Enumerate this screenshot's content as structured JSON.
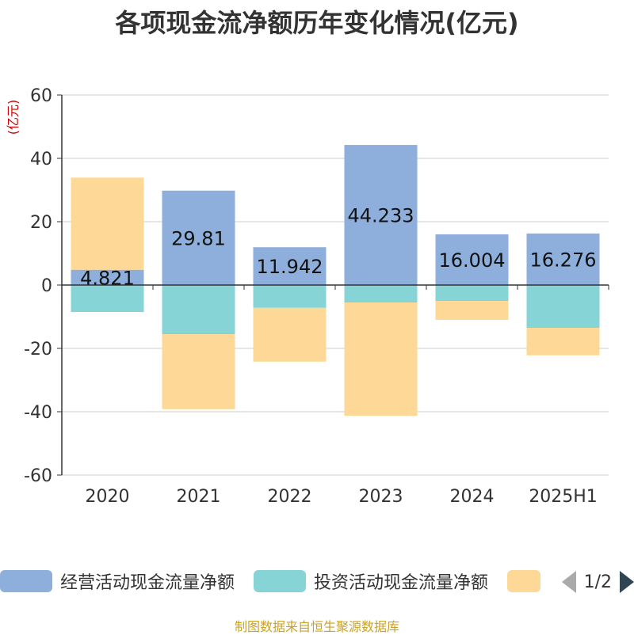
{
  "chart_data": {
    "type": "bar",
    "stacked": true,
    "title": "各项现金流净额历年变化情况(亿元)",
    "ylabel": "(亿元)",
    "ylim": [
      -60,
      60
    ],
    "yticks": [
      60,
      40,
      20,
      0,
      -20,
      -40,
      -60
    ],
    "categories": [
      "2020",
      "2021",
      "2022",
      "2023",
      "2024",
      "2025H1"
    ],
    "series": [
      {
        "name": "经营活动现金流量净额",
        "color": "#8eaedb",
        "values": [
          4.821,
          29.81,
          11.942,
          44.233,
          16.004,
          16.276
        ],
        "labels": [
          "4.821",
          "29.81",
          "11.942",
          "44.233",
          "16.004",
          "16.276"
        ]
      },
      {
        "name": "投资活动现金流量净额",
        "color": "#86d4d6",
        "values": [
          -8.5,
          -15.5,
          -7.2,
          -5.5,
          -5.0,
          -13.5
        ]
      },
      {
        "name": "",
        "color": "#fed896",
        "values": [
          29.1,
          -23.7,
          -17.0,
          -35.8,
          -6.0,
          -8.7
        ]
      }
    ],
    "grid": true,
    "legend_position": "bottom"
  },
  "legend": {
    "page": "1/2"
  },
  "source": "制图数据来自恒生聚源数据库"
}
